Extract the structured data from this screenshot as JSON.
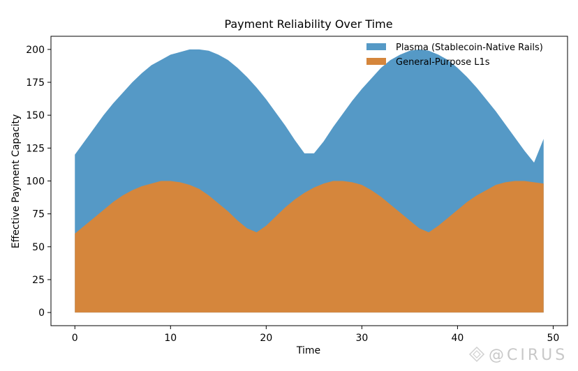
{
  "chart_data": {
    "type": "area",
    "title": "Payment Reliability Over Time",
    "xlabel": "Time",
    "ylabel": "Effective Payment Capacity",
    "xlim": [
      -2.5,
      51.5
    ],
    "ylim": [
      -10,
      210
    ],
    "xticks": [
      0,
      10,
      20,
      30,
      40,
      50
    ],
    "yticks": [
      0,
      25,
      50,
      75,
      100,
      125,
      150,
      175,
      200
    ],
    "grid": false,
    "legend_position": "top-right",
    "x": [
      0,
      1,
      2,
      3,
      4,
      5,
      6,
      7,
      8,
      9,
      10,
      11,
      12,
      13,
      14,
      15,
      16,
      17,
      18,
      19,
      20,
      21,
      22,
      23,
      24,
      25,
      26,
      27,
      28,
      29,
      30,
      31,
      32,
      33,
      34,
      35,
      36,
      37,
      38,
      39,
      40,
      41,
      42,
      43,
      44,
      45,
      46,
      47,
      48,
      49
    ],
    "series": [
      {
        "name": "Plasma (Stablecoin-Native Rails)",
        "color": "#5599c6",
        "values": [
          120,
          130,
          140,
          150,
          159,
          167,
          175,
          182,
          188,
          192,
          196,
          198,
          200,
          200,
          199,
          196,
          192,
          186,
          179,
          171,
          162,
          152,
          142,
          131,
          121,
          121,
          130,
          141,
          151,
          161,
          170,
          178,
          186,
          192,
          196,
          199,
          200,
          199,
          196,
          192,
          186,
          179,
          171,
          162,
          153,
          143,
          133,
          123,
          114,
          132
        ]
      },
      {
        "name": "General-Purpose L1s",
        "color": "#d5863c",
        "values": [
          60,
          66,
          72,
          78,
          84,
          89,
          93,
          96,
          98,
          100,
          100,
          99,
          97,
          94,
          89,
          83,
          77,
          70,
          64,
          61,
          66,
          73,
          80,
          86,
          91,
          95,
          98,
          100,
          100,
          99,
          97,
          93,
          88,
          82,
          76,
          70,
          64,
          61,
          66,
          72,
          78,
          84,
          89,
          93,
          97,
          99,
          100,
          100,
          99,
          98
        ]
      }
    ]
  },
  "watermark": {
    "text": "@CIRUS"
  }
}
